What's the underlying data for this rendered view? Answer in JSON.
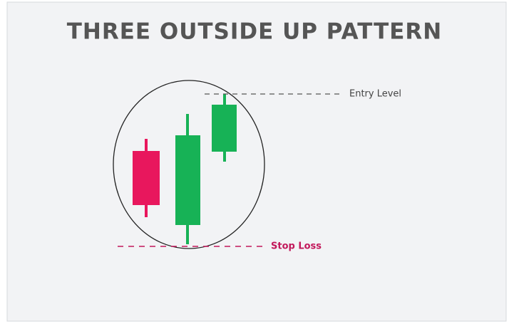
{
  "title": "THREE OUTSIDE UP PATTERN",
  "annotations": {
    "entry": "Entry Level",
    "stop": "Stop Loss"
  }
}
